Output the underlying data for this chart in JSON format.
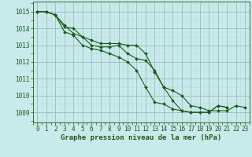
{
  "x": [
    0,
    1,
    2,
    3,
    4,
    5,
    6,
    7,
    8,
    9,
    10,
    11,
    12,
    13,
    14,
    15,
    16,
    17,
    18,
    19,
    20,
    21,
    22,
    23
  ],
  "line1": [
    1015.0,
    1015.0,
    1014.8,
    1014.2,
    1013.7,
    1013.5,
    1013.3,
    1013.1,
    1013.1,
    1013.1,
    1013.0,
    1013.0,
    1012.5,
    1011.4,
    1010.5,
    1009.7,
    1009.1,
    1009.0,
    1009.0,
    1009.0,
    1009.4,
    1009.3,
    null,
    null
  ],
  "line2": [
    1015.0,
    1015.0,
    1014.8,
    1013.8,
    1013.6,
    1013.0,
    1012.8,
    1012.7,
    1012.5,
    1012.3,
    1012.0,
    1011.5,
    1010.5,
    1009.6,
    1009.5,
    1009.2,
    1009.1,
    1009.0,
    1009.0,
    1009.0,
    1009.4,
    1009.3,
    null,
    null
  ],
  "line3": [
    1015.0,
    1015.0,
    1014.8,
    1014.1,
    1014.0,
    1013.5,
    1013.0,
    1012.9,
    1012.9,
    1013.0,
    1012.5,
    1012.2,
    1012.1,
    1011.5,
    1010.5,
    1010.3,
    1010.0,
    1009.4,
    1009.3,
    1009.1,
    1009.1,
    1009.1,
    1009.4,
    1009.3
  ],
  "bg_color": "#c8eaea",
  "grid_major_color": "#99bbbb",
  "grid_minor_color": "#bbdddd",
  "line_color": "#1a5c1a",
  "xlabel": "Graphe pression niveau de la mer (hPa)",
  "ylim": [
    1008.4,
    1015.6
  ],
  "xlim": [
    -0.5,
    23.5
  ],
  "yticks": [
    1009,
    1010,
    1011,
    1012,
    1013,
    1014,
    1015
  ],
  "xticks": [
    0,
    1,
    2,
    3,
    4,
    5,
    6,
    7,
    8,
    9,
    10,
    11,
    12,
    13,
    14,
    15,
    16,
    17,
    18,
    19,
    20,
    21,
    22,
    23
  ],
  "tick_fontsize": 5.5,
  "label_fontsize": 6.5
}
